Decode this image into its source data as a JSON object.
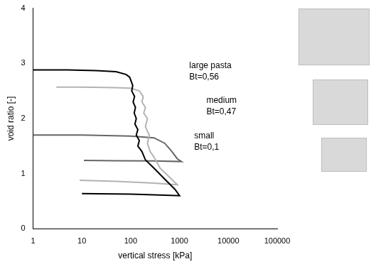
{
  "chart_data": {
    "type": "line",
    "xlabel": "vertical stress [kPa]",
    "ylabel": "void ratio [-]",
    "log": "x",
    "grid": false,
    "xlim": [
      1,
      100000
    ],
    "xticks": [
      1,
      10,
      100,
      1000,
      10000,
      100000
    ],
    "ylim": [
      0,
      4
    ],
    "yticks": [
      0,
      1,
      2,
      3,
      4
    ],
    "series": [
      {
        "name": "large pasta",
        "annotation": "Bt=0,56",
        "color": "#000000",
        "x": [
          1,
          5,
          20,
          50,
          80,
          95,
          100,
          110,
          105,
          120,
          112,
          125,
          118,
          130,
          122,
          140,
          130,
          150,
          140,
          170,
          200,
          300,
          500,
          800,
          1000,
          500,
          100,
          10
        ],
        "values": [
          2.88,
          2.88,
          2.87,
          2.85,
          2.8,
          2.75,
          2.7,
          2.6,
          2.5,
          2.4,
          2.3,
          2.2,
          2.1,
          2.0,
          1.9,
          1.8,
          1.7,
          1.6,
          1.5,
          1.4,
          1.25,
          1.1,
          0.9,
          0.72,
          0.6,
          0.61,
          0.63,
          0.64
        ]
      },
      {
        "name": "medium",
        "annotation": "Bt=0,47",
        "color": "#b3b3b3",
        "x": [
          3,
          10,
          50,
          100,
          150,
          180,
          170,
          200,
          185,
          220,
          200,
          240,
          220,
          250,
          300,
          400,
          600,
          900,
          300,
          50,
          9
        ],
        "values": [
          2.57,
          2.57,
          2.56,
          2.55,
          2.5,
          2.4,
          2.3,
          2.2,
          2.1,
          2.0,
          1.85,
          1.7,
          1.55,
          1.4,
          1.3,
          1.1,
          0.95,
          0.8,
          0.83,
          0.86,
          0.88
        ]
      },
      {
        "name": "small",
        "annotation": "Bt=0,1",
        "color": "#666666",
        "x": [
          1,
          10,
          100,
          300,
          500,
          700,
          900,
          1100,
          300,
          50,
          11
        ],
        "values": [
          1.7,
          1.7,
          1.68,
          1.65,
          1.55,
          1.4,
          1.27,
          1.22,
          1.23,
          1.235,
          1.24
        ]
      }
    ]
  }
}
